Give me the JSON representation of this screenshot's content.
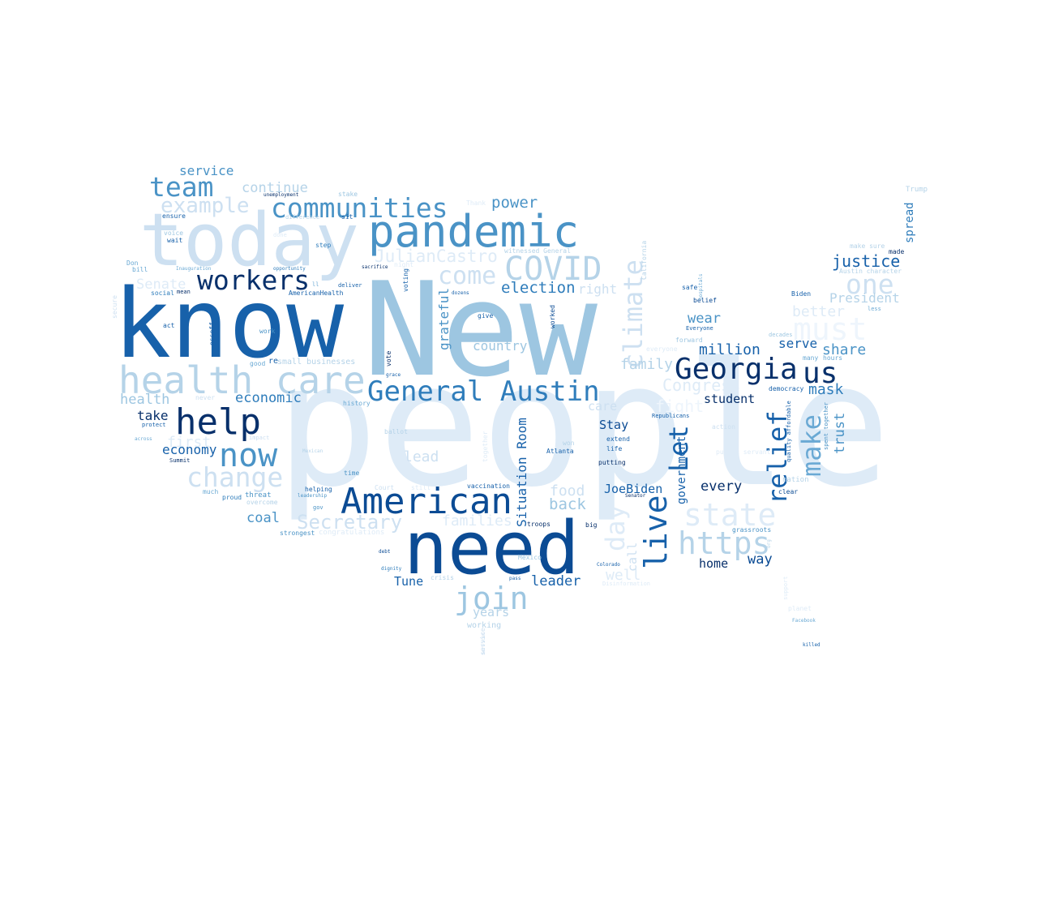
{
  "palette": {
    "c1": "#08306b",
    "c2": "#0b4b94",
    "c3": "#1761aa",
    "c4": "#2f7dbb",
    "c5": "#4a93c6",
    "c6": "#6aa9d4",
    "c7": "#9dc6e1",
    "c8": "#b5d3e8",
    "c9": "#cde0f1",
    "c10": "#deebf7",
    "c11": "#eef5fc"
  },
  "words": [
    {
      "text": "people",
      "color": "c10"
    },
    {
      "text": "New",
      "color": "c7"
    },
    {
      "text": "know",
      "color": "c3"
    },
    {
      "text": "today",
      "color": "c9"
    },
    {
      "text": "need",
      "color": "c2"
    },
    {
      "text": "pandemic",
      "color": "c5"
    },
    {
      "text": "health care",
      "color": "c8"
    },
    {
      "text": "American",
      "color": "c2"
    },
    {
      "text": "help",
      "color": "c1"
    },
    {
      "text": "General Austin",
      "color": "c4"
    },
    {
      "text": "COVID",
      "color": "c8"
    },
    {
      "text": "Georgia",
      "color": "c1"
    },
    {
      "text": "us",
      "color": "c1"
    },
    {
      "text": "communities",
      "color": "c5"
    },
    {
      "text": "team",
      "color": "c5"
    },
    {
      "text": "workers",
      "color": "c1"
    },
    {
      "text": "now",
      "color": "c5"
    },
    {
      "text": "join",
      "color": "c7"
    },
    {
      "text": "change",
      "color": "c9"
    },
    {
      "text": "state",
      "color": "c10"
    },
    {
      "text": "https",
      "color": "c8"
    },
    {
      "text": "must",
      "color": "c11"
    },
    {
      "text": "one",
      "color": "c9"
    },
    {
      "text": "come",
      "color": "c9"
    },
    {
      "text": "example",
      "color": "c9"
    },
    {
      "text": "Secretary",
      "color": "c9"
    },
    {
      "text": "climate",
      "color": "c9"
    },
    {
      "text": "relief",
      "color": "c3"
    },
    {
      "text": "make",
      "color": "c6"
    },
    {
      "text": "live",
      "color": "c3"
    },
    {
      "text": "Let",
      "color": "c3"
    },
    {
      "text": "day",
      "color": "c10"
    },
    {
      "text": "JulianCastro",
      "color": "c10"
    },
    {
      "text": "justice",
      "color": "c3"
    },
    {
      "text": "election",
      "color": "c4"
    },
    {
      "text": "power",
      "color": "c5"
    },
    {
      "text": "continue",
      "color": "c8"
    },
    {
      "text": "service",
      "color": "c5"
    },
    {
      "text": "million",
      "color": "c3"
    },
    {
      "text": "wear",
      "color": "c5"
    },
    {
      "text": "share",
      "color": "c5"
    },
    {
      "text": "better",
      "color": "c10"
    },
    {
      "text": "President",
      "color": "c8"
    },
    {
      "text": "right",
      "color": "c9"
    },
    {
      "text": "family",
      "color": "c8"
    },
    {
      "text": "Congress",
      "color": "c10"
    },
    {
      "text": "mask",
      "color": "c4"
    },
    {
      "text": "student",
      "color": "c1"
    },
    {
      "text": "serve",
      "color": "c3"
    },
    {
      "text": "country",
      "color": "c7"
    },
    {
      "text": "economic",
      "color": "c4"
    },
    {
      "text": "health",
      "color": "c7"
    },
    {
      "text": "take",
      "color": "c1"
    },
    {
      "text": "economy",
      "color": "c3"
    },
    {
      "text": "Senate",
      "color": "c10"
    },
    {
      "text": "first",
      "color": "c10"
    },
    {
      "text": "lead",
      "color": "c9"
    },
    {
      "text": "food",
      "color": "c9"
    },
    {
      "text": "back",
      "color": "c7"
    },
    {
      "text": "families",
      "color": "c10"
    },
    {
      "text": "coal",
      "color": "c5"
    },
    {
      "text": "Stay",
      "color": "c2"
    },
    {
      "text": "JoeBiden",
      "color": "c3"
    },
    {
      "text": "every",
      "color": "c1"
    },
    {
      "text": "government",
      "color": "c3"
    },
    {
      "text": "way",
      "color": "c2"
    },
    {
      "text": "home",
      "color": "c1"
    },
    {
      "text": "leader",
      "color": "c3"
    },
    {
      "text": "Tune",
      "color": "c3"
    },
    {
      "text": "years",
      "color": "c8"
    },
    {
      "text": "well",
      "color": "c10"
    },
    {
      "text": "care",
      "color": "c9"
    },
    {
      "text": "trust",
      "color": "c5"
    },
    {
      "text": "spread",
      "color": "c4"
    },
    {
      "text": "Situation Room",
      "color": "c3"
    },
    {
      "text": "grateful",
      "color": "c5"
    },
    {
      "text": "call",
      "color": "c9"
    },
    {
      "text": "working",
      "color": "c8"
    },
    {
      "text": "fight",
      "color": "c11"
    },
    {
      "text": "Trump",
      "color": "c8"
    },
    {
      "text": "make sure",
      "color": "c8"
    },
    {
      "text": "made",
      "color": "c1"
    },
    {
      "text": "Austin character",
      "color": "c8"
    },
    {
      "text": "less",
      "color": "c6"
    },
    {
      "text": "Biden",
      "color": "c3"
    },
    {
      "text": "many",
      "color": "c6"
    },
    {
      "text": "hours",
      "color": "c6"
    },
    {
      "text": "decades",
      "color": "c7"
    },
    {
      "text": "democracy",
      "color": "c3"
    },
    {
      "text": "safe",
      "color": "c3"
    },
    {
      "text": "belief",
      "color": "c2"
    },
    {
      "text": "Everyone",
      "color": "c3"
    },
    {
      "text": "forward",
      "color": "c7"
    },
    {
      "text": "action",
      "color": "c9"
    },
    {
      "text": "public servant",
      "color": "c10"
    },
    {
      "text": "Republicans",
      "color": "c3"
    },
    {
      "text": "extend",
      "color": "c3"
    },
    {
      "text": "life",
      "color": "c3"
    },
    {
      "text": "won",
      "color": "c8"
    },
    {
      "text": "Atlanta",
      "color": "c3"
    },
    {
      "text": "putting",
      "color": "c1"
    },
    {
      "text": "Senator",
      "color": "c1"
    },
    {
      "text": "clear",
      "color": "c2"
    },
    {
      "text": "grassroots",
      "color": "c5"
    },
    {
      "text": "big",
      "color": "c1"
    },
    {
      "text": "troops",
      "color": "c1"
    },
    {
      "text": "vaccination",
      "color": "c3"
    },
    {
      "text": "Mexico",
      "color": "c7"
    },
    {
      "text": "Colorado",
      "color": "c3"
    },
    {
      "text": "Facebook",
      "color": "c6"
    },
    {
      "text": "killed",
      "color": "c3"
    },
    {
      "text": "witnessed General",
      "color": "c8"
    },
    {
      "text": "California",
      "color": "c8"
    },
    {
      "text": "hospitals",
      "color": "c6"
    },
    {
      "text": "worked",
      "color": "c2"
    },
    {
      "text": "give",
      "color": "c3"
    },
    {
      "text": "dozens",
      "color": "c3"
    },
    {
      "text": "deliver",
      "color": "c3"
    },
    {
      "text": "voting",
      "color": "c3"
    },
    {
      "text": "vote",
      "color": "c1"
    },
    {
      "text": "grace",
      "color": "c3"
    },
    {
      "text": "history",
      "color": "c6"
    },
    {
      "text": "ballot",
      "color": "c8"
    },
    {
      "text": "Mexican",
      "color": "c8"
    },
    {
      "text": "together",
      "color": "c10"
    },
    {
      "text": "time",
      "color": "c5"
    },
    {
      "text": "helping",
      "color": "c3"
    },
    {
      "text": "leadership",
      "color": "c5"
    },
    {
      "text": "gov",
      "color": "c5"
    },
    {
      "text": "Court",
      "color": "c9"
    },
    {
      "text": "debt",
      "color": "c2"
    },
    {
      "text": "dignity",
      "color": "c4"
    },
    {
      "text": "crisis",
      "color": "c8"
    },
    {
      "text": "pass",
      "color": "c3"
    },
    {
      "text": "service",
      "color": "c9"
    },
    {
      "text": "sacrifice",
      "color": "c1"
    },
    {
      "text": "opportunity",
      "color": "c4"
    },
    {
      "text": "step",
      "color": "c4"
    },
    {
      "text": "stake",
      "color": "c7"
    },
    {
      "text": "sit",
      "color": "c3"
    },
    {
      "text": "unemployment",
      "color": "c1"
    },
    {
      "text": "difference",
      "color": "c8"
    },
    {
      "text": "Thank",
      "color": "c10"
    },
    {
      "text": "ensure",
      "color": "c3"
    },
    {
      "text": "voice",
      "color": "c7"
    },
    {
      "text": "wait",
      "color": "c3"
    },
    {
      "text": "Don",
      "color": "c6"
    },
    {
      "text": "bill",
      "color": "c6"
    },
    {
      "text": "Inauguration",
      "color": "c6"
    },
    {
      "text": "social",
      "color": "c4"
    },
    {
      "text": "mean",
      "color": "c1"
    },
    {
      "text": "act",
      "color": "c3"
    },
    {
      "text": "ossoff",
      "color": "c3"
    },
    {
      "text": "work",
      "color": "c5"
    },
    {
      "text": "AmericanHealth",
      "color": "c3"
    },
    {
      "text": "ll",
      "color": "c6"
    },
    {
      "text": "good",
      "color": "c6"
    },
    {
      "text": "re",
      "color": "c3"
    },
    {
      "text": "small businesses",
      "color": "c8"
    },
    {
      "text": "never",
      "color": "c9"
    },
    {
      "text": "impact",
      "color": "c9"
    },
    {
      "text": "protect",
      "color": "c3"
    },
    {
      "text": "across",
      "color": "c6"
    },
    {
      "text": "Summit",
      "color": "c1"
    },
    {
      "text": "much",
      "color": "c6"
    },
    {
      "text": "proud",
      "color": "c4"
    },
    {
      "text": "threat",
      "color": "c5"
    },
    {
      "text": "overcome",
      "color": "c8"
    },
    {
      "text": "strongest",
      "color": "c5"
    },
    {
      "text": "congratulations",
      "color": "c10"
    },
    {
      "text": "secure",
      "color": "c9"
    },
    {
      "text": "quality affordable",
      "color": "c3"
    },
    {
      "text": "spent together",
      "color": "c5"
    },
    {
      "text": "nation",
      "color": "c8"
    },
    {
      "text": "org",
      "color": "c8"
    },
    {
      "text": "support",
      "color": "c10"
    },
    {
      "text": "planet",
      "color": "c10"
    },
    {
      "text": "Disinformation",
      "color": "c10"
    },
    {
      "text": "services",
      "color": "c9"
    },
    {
      "text": "still",
      "color": "c10"
    },
    {
      "text": "night",
      "color": "c10"
    },
    {
      "text": "done",
      "color": "c10"
    },
    {
      "text": "everyone",
      "color": "c10"
    }
  ]
}
